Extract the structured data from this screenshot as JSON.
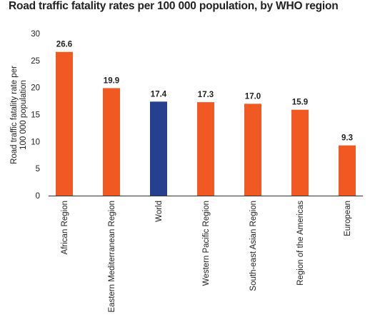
{
  "chart_data": {
    "type": "bar",
    "title": "Road traffic fatality rates per 100 000 population, by WHO region",
    "ylabel_lines": [
      "Road traffic fatality rate per",
      "100 000 population"
    ],
    "xlabel": "",
    "categories": [
      "African Region",
      "Eastern Mediterranean Region",
      "World",
      "Western Pacific Region",
      "South-east Asian Region",
      "Region of the Americas",
      "European"
    ],
    "values": [
      26.6,
      19.9,
      17.4,
      17.3,
      17.0,
      15.9,
      9.3
    ],
    "value_labels": [
      "26.6",
      "19.9",
      "17.4",
      "17.3",
      "17.0",
      "15.9",
      "9.3"
    ],
    "bar_colors": [
      "#f05a22",
      "#f05a22",
      "#24408e",
      "#f05a22",
      "#f05a22",
      "#f05a22",
      "#f05a22"
    ],
    "ylim": [
      0,
      30
    ],
    "yticks": [
      0,
      5,
      10,
      15,
      20,
      25,
      30
    ],
    "grid": false,
    "legend": "none"
  }
}
